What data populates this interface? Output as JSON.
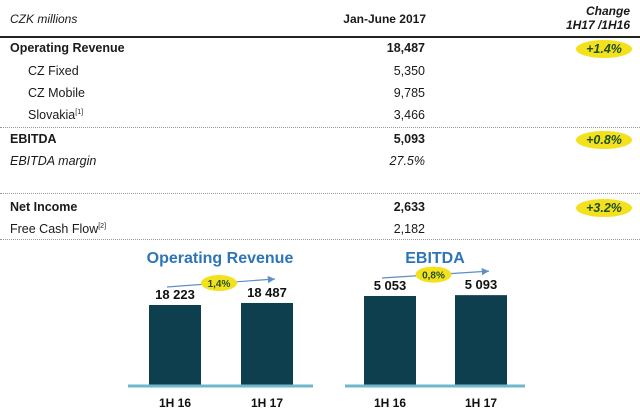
{
  "table": {
    "header": {
      "unit": "CZK millions",
      "period": "Jan-June 2017",
      "change_line1": "Change",
      "change_line2": "1H17 /1H16"
    },
    "rows": [
      {
        "label": "Operating Revenue",
        "value": "18,487",
        "change": "+1.4%"
      },
      {
        "label": "CZ Fixed",
        "value": "5,350"
      },
      {
        "label": "CZ Mobile",
        "value": "9,785"
      },
      {
        "label": "Slovakia",
        "sup": "[1]",
        "value": "3,466"
      },
      {
        "label": "EBITDA",
        "value": "5,093",
        "change": "+0.8%"
      },
      {
        "label": "EBITDA margin",
        "value": "27.5%"
      },
      {
        "label": "Net Income",
        "value": "2,633",
        "change": "+3.2%"
      },
      {
        "label": "Free Cash Flow",
        "sup": "[2]",
        "value": "2,182"
      }
    ]
  },
  "colors": {
    "bar": "#0d3f4f",
    "baseline": "#6fb7c9",
    "badge": "#f4e11d",
    "title": "#2e75b6",
    "arrow": "#5b8fc7"
  },
  "chart_data": [
    {
      "type": "bar",
      "title": "Operating Revenue",
      "categories": [
        "1H 16",
        "1H 17"
      ],
      "values": [
        18223,
        18487
      ],
      "value_labels": [
        "18 223",
        "18 487"
      ],
      "change_label": "1,4%"
    },
    {
      "type": "bar",
      "title": "EBITDA",
      "categories": [
        "1H 16",
        "1H 17"
      ],
      "values": [
        5053,
        5093
      ],
      "value_labels": [
        "5 053",
        "5 093"
      ],
      "change_label": "0,8%"
    }
  ]
}
